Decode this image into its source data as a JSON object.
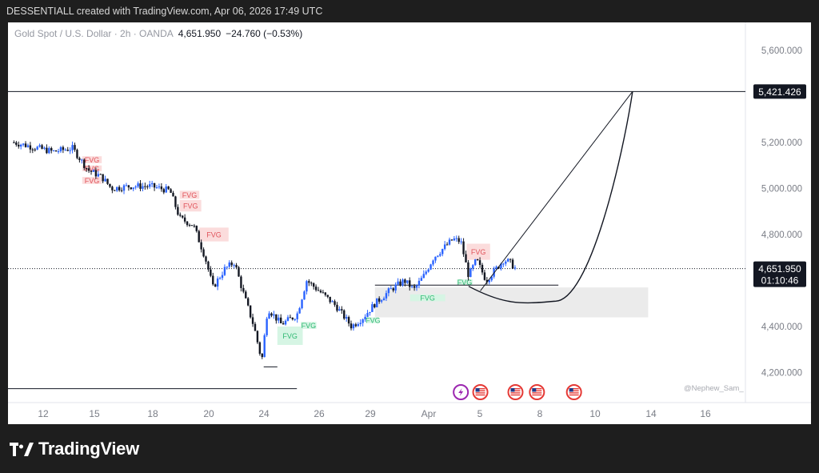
{
  "header": {
    "caption": "DESSENTIALL created with TradingView.com, Apr 06, 2026 17:49 UTC"
  },
  "legend": {
    "symbol": "Gold Spot / U.S. Dollar · 2h · OANDA",
    "price": "4,651.950",
    "change": "−24.760 (−0.53%)"
  },
  "price_axis": {
    "ticks": [
      "5,600.000",
      "5,200.000",
      "5,000.000",
      "4,800.000",
      "4,400.000",
      "4,200.000"
    ],
    "target_label": "5,421.426",
    "current_label": "4,651.950",
    "countdown": "01:10:46"
  },
  "time_axis": {
    "ticks": [
      "12",
      "15",
      "18",
      "20",
      "24",
      "26",
      "29",
      "Apr",
      "5",
      "8",
      "10",
      "14",
      "16"
    ]
  },
  "watermark": "@Nephew_Sam_",
  "fvg_label": "FVG",
  "brand": {
    "name": "TradingView"
  },
  "colors": {
    "up": "#2962ff",
    "down": "#131722",
    "fvg_bear_fill": "#fbdcdc",
    "fvg_bear_text": "#e0525a",
    "fvg_bull_fill": "#d6f5e4",
    "fvg_bull_text": "#2eb872",
    "zone_fill": "#ebebeb",
    "event_purple": "#9c27b0",
    "event_red": "#e53935"
  },
  "chart_data": {
    "type": "candlestick",
    "instrument": "Gold Spot / U.S. Dollar",
    "timeframe": "2h",
    "source": "OANDA",
    "ylim": [
      4100,
      5700
    ],
    "last_price": 4651.95,
    "change": -24.76,
    "change_pct": -0.53,
    "target_level": 5421.426,
    "support_level": 4130,
    "close_path": [
      {
        "t": 10.5,
        "y": 5200
      },
      {
        "t": 11.5,
        "y": 5180
      },
      {
        "t": 12.5,
        "y": 5160
      },
      {
        "t": 13.5,
        "y": 5175
      },
      {
        "t": 14.3,
        "y": 5080
      },
      {
        "t": 15.0,
        "y": 5050
      },
      {
        "t": 15.5,
        "y": 5000
      },
      {
        "t": 16.5,
        "y": 5010
      },
      {
        "t": 17.5,
        "y": 5010
      },
      {
        "t": 18.5,
        "y": 4990
      },
      {
        "t": 19.0,
        "y": 4870
      },
      {
        "t": 19.7,
        "y": 4840
      },
      {
        "t": 20.3,
        "y": 4700
      },
      {
        "t": 20.7,
        "y": 4570
      },
      {
        "t": 21.3,
        "y": 4650
      },
      {
        "t": 21.8,
        "y": 4680
      },
      {
        "t": 22.2,
        "y": 4560
      },
      {
        "t": 22.8,
        "y": 4400
      },
      {
        "t": 23.2,
        "y": 4250
      },
      {
        "t": 23.5,
        "y": 4480
      },
      {
        "t": 24.2,
        "y": 4410
      },
      {
        "t": 25.0,
        "y": 4450
      },
      {
        "t": 25.5,
        "y": 4600
      },
      {
        "t": 26.2,
        "y": 4550
      },
      {
        "t": 27.0,
        "y": 4490
      },
      {
        "t": 27.8,
        "y": 4400
      },
      {
        "t": 28.4,
        "y": 4440
      },
      {
        "t": 29.0,
        "y": 4500
      },
      {
        "t": 29.8,
        "y": 4560
      },
      {
        "t": 30.5,
        "y": 4600
      },
      {
        "t": 31.0,
        "y": 4560
      },
      {
        "t": 31.5,
        "y": 4620
      },
      {
        "t": 32.0,
        "y": 4700
      },
      {
        "t": 32.5,
        "y": 4740
      },
      {
        "t": 33.0,
        "y": 4780
      },
      {
        "t": 33.4,
        "y": 4770
      },
      {
        "t": 33.8,
        "y": 4620
      },
      {
        "t": 34.2,
        "y": 4690
      },
      {
        "t": 34.7,
        "y": 4600
      },
      {
        "t": 35.1,
        "y": 4640
      },
      {
        "t": 35.6,
        "y": 4690
      },
      {
        "t": 35.9,
        "y": 4680
      },
      {
        "t": 36.2,
        "y": 4652
      }
    ],
    "fvg_zones": [
      {
        "kind": "bearish",
        "t0": 14.0,
        "t1": 15.0,
        "y0": 5110,
        "y1": 5140
      },
      {
        "kind": "bearish",
        "t0": 14.0,
        "t1": 15.0,
        "y0": 5075,
        "y1": 5100
      },
      {
        "kind": "bearish",
        "t0": 14.0,
        "t1": 15.0,
        "y0": 5020,
        "y1": 5050
      },
      {
        "kind": "bearish",
        "t0": 19.0,
        "t1": 20.0,
        "y0": 4955,
        "y1": 4990
      },
      {
        "kind": "bearish",
        "t0": 19.0,
        "t1": 20.1,
        "y0": 4900,
        "y1": 4950
      },
      {
        "kind": "bearish",
        "t0": 20.0,
        "t1": 21.5,
        "y0": 4770,
        "y1": 4830
      },
      {
        "kind": "bearish",
        "t0": 33.7,
        "t1": 34.9,
        "y0": 4690,
        "y1": 4760
      },
      {
        "kind": "bullish",
        "t0": 24.0,
        "t1": 25.3,
        "y0": 4320,
        "y1": 4400
      },
      {
        "kind": "bullish",
        "t0": 25.2,
        "t1": 26.0,
        "y0": 4390,
        "y1": 4420
      },
      {
        "kind": "bullish",
        "t0": 28.6,
        "t1": 29.2,
        "y0": 4415,
        "y1": 4440
      },
      {
        "kind": "bullish",
        "t0": 30.8,
        "t1": 32.6,
        "y0": 4510,
        "y1": 4540
      },
      {
        "kind": "bullish",
        "t0": 33.2,
        "t1": 34.0,
        "y0": 4580,
        "y1": 4605
      }
    ],
    "demand_zone": {
      "t0": 29.0,
      "t1": 43.0,
      "y0": 4440,
      "y1": 4570
    },
    "projection": {
      "straight_line": [
        {
          "t": 34.4,
          "y": 4555
        },
        {
          "t": 42.2,
          "y": 5421.426
        }
      ],
      "curve": {
        "start": {
          "t": 33.8,
          "y": 4575
        },
        "low": {
          "t": 38.2,
          "y": 4510
        },
        "end": {
          "t": 42.2,
          "y": 5421.426
        }
      }
    }
  }
}
